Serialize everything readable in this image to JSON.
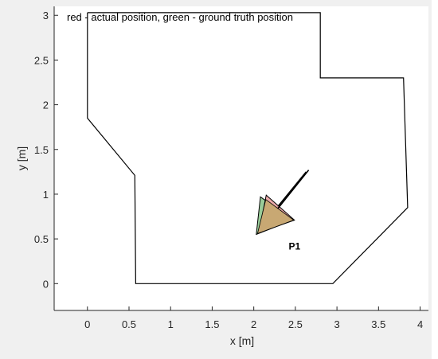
{
  "chart_data": {
    "type": "line",
    "title": "red - actual position, green - ground truth position",
    "xlabel": "x [m]",
    "ylabel": "y [m]",
    "xlim": [
      -0.4,
      4.1
    ],
    "ylim": [
      -0.3,
      3.1
    ],
    "xticks": [
      0,
      0.5,
      1,
      1.5,
      2,
      2.5,
      3,
      3.5,
      4
    ],
    "yticks": [
      0,
      0.5,
      1,
      1.5,
      2,
      2.5,
      3
    ],
    "xtick_labels": [
      "0",
      "0.5",
      "1",
      "1.5",
      "2",
      "2.5",
      "3",
      "3.5",
      "4"
    ],
    "ytick_labels": [
      "0",
      "0.5",
      "1",
      "1.5",
      "2",
      "2.5",
      "3"
    ],
    "grid": false,
    "series": [
      {
        "kind": "boundary",
        "color": "#000000",
        "points": [
          [
            0.0,
            3.03
          ],
          [
            2.8,
            3.03
          ],
          [
            2.8,
            2.3
          ],
          [
            3.8,
            2.3
          ],
          [
            3.85,
            0.85
          ],
          [
            2.95,
            0.0
          ],
          [
            0.58,
            0.0
          ],
          [
            0.57,
            1.21
          ],
          [
            0.0,
            1.85
          ],
          [
            0.0,
            3.03
          ]
        ]
      },
      {
        "kind": "robot-ground-truth",
        "color": "#2ca02c",
        "fill": "#99cc99",
        "points": [
          [
            2.08,
            0.97
          ],
          [
            2.47,
            0.71
          ],
          [
            2.03,
            0.55
          ]
        ],
        "heading_line": [
          [
            2.27,
            0.84
          ],
          [
            2.63,
            1.25
          ]
        ]
      },
      {
        "kind": "robot-actual",
        "color": "#d62728",
        "fill": "#e8a0a0",
        "points": [
          [
            2.15,
            0.99
          ],
          [
            2.49,
            0.71
          ],
          [
            2.06,
            0.57
          ]
        ],
        "heading_line": [
          [
            2.29,
            0.84
          ],
          [
            2.66,
            1.27
          ]
        ]
      }
    ],
    "overlap_fill": "#c8a873",
    "annotations": [
      {
        "text": "P1",
        "x": 2.42,
        "y": 0.38
      }
    ]
  }
}
